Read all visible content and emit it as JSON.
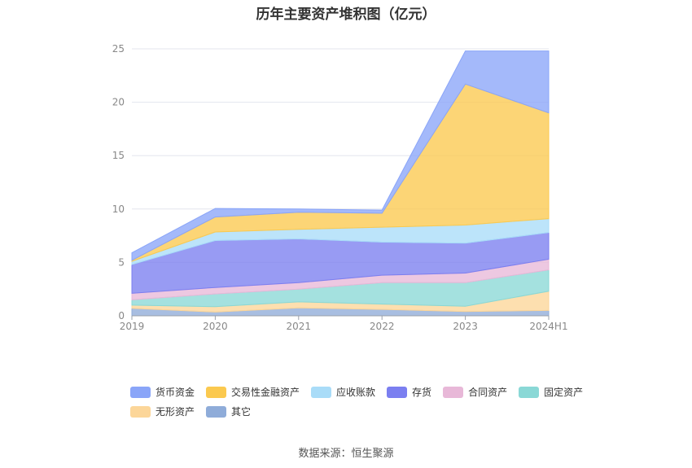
{
  "chart_data": {
    "type": "area",
    "stacked": true,
    "title": "历年主要资产堆积图（亿元）",
    "source": "数据来源：恒生聚源",
    "categories": [
      "2019",
      "2020",
      "2021",
      "2022",
      "2023",
      "2024H1"
    ],
    "ylim": [
      0,
      25
    ],
    "yticks": [
      "0",
      "5",
      "10",
      "15",
      "20",
      "25"
    ],
    "grid": true,
    "legend_position": "bottom",
    "series": [
      {
        "name": "其它",
        "color": "#8facd9",
        "values": [
          0.7,
          0.35,
          0.75,
          0.6,
          0.4,
          0.5
        ]
      },
      {
        "name": "无形资产",
        "color": "#fcd699",
        "values": [
          0.3,
          0.5,
          0.55,
          0.5,
          0.5,
          1.8
        ]
      },
      {
        "name": "固定资产",
        "color": "#8ad8d6",
        "values": [
          0.5,
          1.2,
          1.2,
          2.0,
          2.2,
          2.0
        ]
      },
      {
        "name": "合同资产",
        "color": "#e8b8d8",
        "values": [
          0.6,
          0.6,
          0.6,
          0.7,
          0.9,
          1.0
        ]
      },
      {
        "name": "存货",
        "color": "#7b7ff0",
        "values": [
          2.7,
          4.4,
          4.1,
          3.1,
          2.8,
          2.5
        ]
      },
      {
        "name": "应收账款",
        "color": "#a9dcf8",
        "values": [
          0.3,
          0.8,
          0.9,
          1.4,
          1.7,
          1.3
        ]
      },
      {
        "name": "交易性金融资产",
        "color": "#fbc94f",
        "values": [
          0.1,
          1.4,
          1.6,
          1.3,
          13.2,
          9.9
        ]
      },
      {
        "name": "货币资金",
        "color": "#8aa5f8",
        "values": [
          0.7,
          0.8,
          0.3,
          0.3,
          3.1,
          5.8
        ]
      }
    ]
  },
  "legend_order": [
    "货币资金",
    "交易性金融资产",
    "应收账款",
    "存货",
    "合同资产",
    "固定资产",
    "无形资产",
    "其它"
  ]
}
